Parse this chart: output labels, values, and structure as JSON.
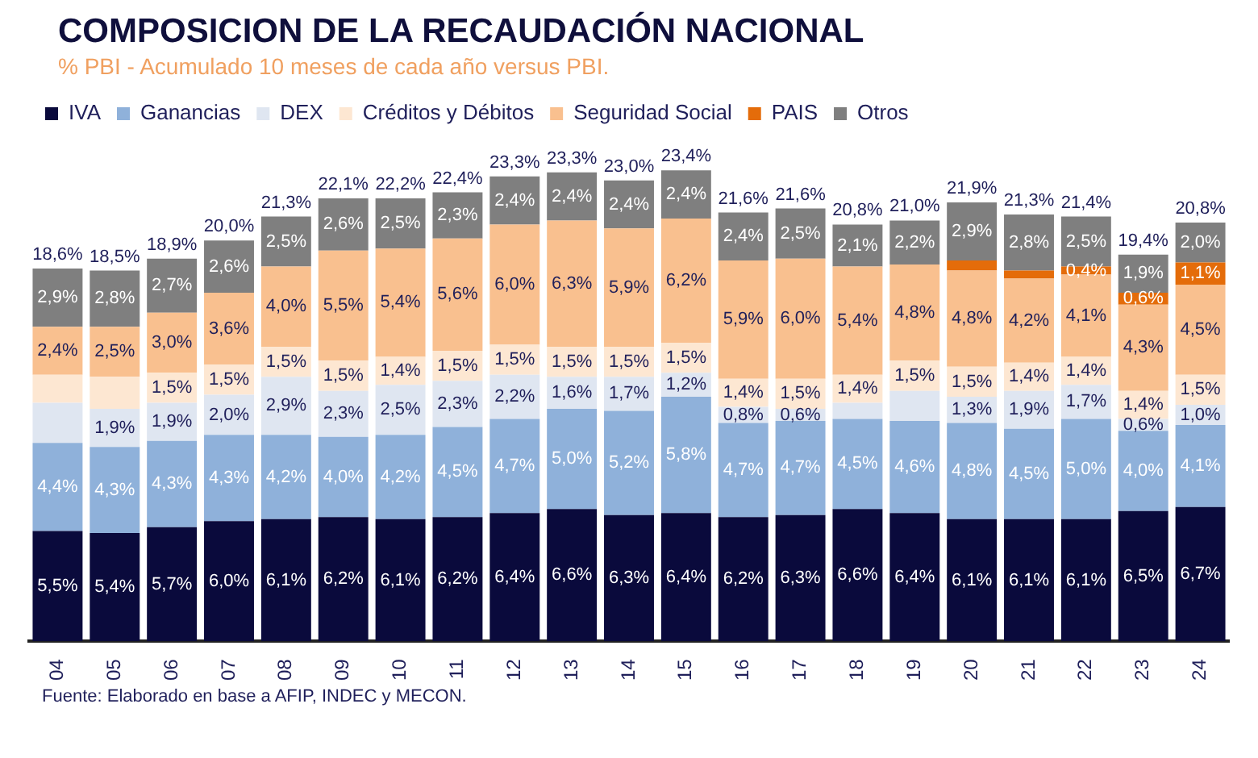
{
  "chart_data": {
    "type": "bar",
    "title": "COMPOSICION DE LA RECAUDACIÓN NACIONAL",
    "subtitle": "% PBI - Acumulado 10 meses de cada año versus PBI.",
    "annotations": [
      "Fuente: Elaborado en base a AFIP, INDEC y MECON."
    ],
    "categories": [
      "04",
      "05",
      "06",
      "07",
      "08",
      "09",
      "10",
      "11",
      "12",
      "13",
      "14",
      "15",
      "16",
      "17",
      "18",
      "19",
      "20",
      "21",
      "22",
      "23",
      "24"
    ],
    "stacked": true,
    "legend": "top",
    "grid": false,
    "tick_labels": "x",
    "series": [
      {
        "name": "IVA",
        "color": "#0a0a3c",
        "values": [
          5.5,
          5.4,
          5.7,
          6.0,
          6.1,
          6.2,
          6.1,
          6.2,
          6.4,
          6.6,
          6.3,
          6.4,
          6.2,
          6.3,
          6.6,
          6.4,
          6.1,
          6.1,
          6.1,
          6.5,
          6.7
        ],
        "value_labels": [
          "5,5%",
          "5,4%",
          "5,7%",
          "6,0%",
          "6,1%",
          "6,2%",
          "6,1%",
          "6,2%",
          "6,4%",
          "6,6%",
          "6,3%",
          "6,4%",
          "6,2%",
          "6,3%",
          "6,6%",
          "6,4%",
          "6,1%",
          "6,1%",
          "6,1%",
          "6,5%",
          "6,7%"
        ]
      },
      {
        "name": "Ganancias",
        "color": "#8fb1da",
        "values": [
          4.4,
          4.3,
          4.3,
          4.3,
          4.2,
          4.0,
          4.2,
          4.5,
          4.7,
          5.0,
          5.2,
          5.8,
          4.7,
          4.7,
          4.5,
          4.6,
          4.8,
          4.5,
          5.0,
          4.0,
          4.1
        ],
        "value_labels": [
          "4,4%",
          "4,3%",
          "4,3%",
          "4,3%",
          "4,2%",
          "4,0%",
          "4,2%",
          "4,5%",
          "4,7%",
          "5,0%",
          "5,2%",
          "5,8%",
          "4,7%",
          "4,7%",
          "4,5%",
          "4,6%",
          "4,8%",
          "4,5%",
          "5,0%",
          "4,0%",
          "4,1%"
        ]
      },
      {
        "name": "DEX",
        "color": "#dfe6f1",
        "values": [
          2.0,
          1.9,
          1.9,
          2.0,
          2.9,
          2.3,
          2.5,
          2.3,
          2.2,
          1.6,
          1.7,
          1.2,
          0.8,
          0.6,
          0.8,
          1.5,
          1.3,
          1.9,
          1.7,
          0.6,
          1.0
        ],
        "value_labels": [
          null,
          "1,9%",
          "1,9%",
          "2,0%",
          "2,9%",
          "2,3%",
          "2,5%",
          "2,3%",
          "2,2%",
          "1,6%",
          "1,7%",
          "1,2%",
          "0,8%",
          "0,6%",
          null,
          null,
          "1,3%",
          "1,9%",
          "1,7%",
          "0,6%",
          "1,0%"
        ]
      },
      {
        "name": "Créditos y Débitos",
        "color": "#fde7d2",
        "values": [
          1.4,
          1.6,
          1.5,
          1.5,
          1.5,
          1.5,
          1.4,
          1.5,
          1.5,
          1.5,
          1.5,
          1.5,
          1.4,
          1.5,
          1.4,
          1.5,
          1.5,
          1.4,
          1.4,
          1.4,
          1.5
        ],
        "value_labels": [
          null,
          null,
          "1,5%",
          "1,5%",
          "1,5%",
          "1,5%",
          "1,4%",
          "1,5%",
          "1,5%",
          "1,5%",
          "1,5%",
          "1,5%",
          "1,4%",
          "1,5%",
          "1,4%",
          "1,5%",
          "1,5%",
          "1,4%",
          "1,4%",
          "1,4%",
          "1,5%"
        ]
      },
      {
        "name": "Seguridad Social",
        "color": "#f9c08f",
        "values": [
          2.4,
          2.5,
          3.0,
          3.6,
          4.0,
          5.5,
          5.4,
          5.6,
          6.0,
          6.3,
          5.9,
          6.2,
          5.9,
          6.0,
          5.4,
          4.8,
          4.8,
          4.2,
          4.1,
          4.3,
          4.5
        ],
        "value_labels": [
          "2,4%",
          "2,5%",
          "3,0%",
          "3,6%",
          "4,0%",
          "5,5%",
          "5,4%",
          "5,6%",
          "6,0%",
          "6,3%",
          "5,9%",
          "6,2%",
          "5,9%",
          "6,0%",
          "5,4%",
          "4,8%",
          "4,8%",
          "4,2%",
          "4,1%",
          "4,3%",
          "4,5%"
        ]
      },
      {
        "name": "PAIS",
        "color": "#e46c0a",
        "values": [
          null,
          null,
          null,
          null,
          null,
          null,
          null,
          null,
          null,
          null,
          null,
          null,
          null,
          null,
          null,
          null,
          0.5,
          0.4,
          0.4,
          0.6,
          1.1
        ],
        "value_labels": [
          null,
          null,
          null,
          null,
          null,
          null,
          null,
          null,
          null,
          null,
          null,
          null,
          null,
          null,
          null,
          null,
          null,
          null,
          "0,4%",
          "0,6%",
          "1,1%"
        ]
      },
      {
        "name": "Otros",
        "color": "#7f7f7f",
        "values": [
          2.9,
          2.8,
          2.7,
          2.6,
          2.5,
          2.6,
          2.5,
          2.3,
          2.4,
          2.4,
          2.4,
          2.4,
          2.4,
          2.5,
          2.1,
          2.2,
          2.9,
          2.8,
          2.5,
          1.9,
          2.0
        ],
        "value_labels": [
          "2,9%",
          "2,8%",
          "2,7%",
          "2,6%",
          "2,5%",
          "2,6%",
          "2,5%",
          "2,3%",
          "2,4%",
          "2,4%",
          "2,4%",
          "2,4%",
          "2,4%",
          "2,5%",
          "2,1%",
          "2,2%",
          "2,9%",
          "2,8%",
          "2,5%",
          "1,9%",
          "2,0%"
        ]
      }
    ],
    "totals": [
      "18,6%",
      "18,5%",
      "18,9%",
      "20,0%",
      "21,3%",
      "22,1%",
      "22,2%",
      "22,4%",
      "23,3%",
      "23,3%",
      "23,0%",
      "23,4%",
      "21,6%",
      "21,6%",
      "20,8%",
      "21,0%",
      "21,9%",
      "21,3%",
      "21,4%",
      "19,4%",
      "20,8%"
    ]
  }
}
